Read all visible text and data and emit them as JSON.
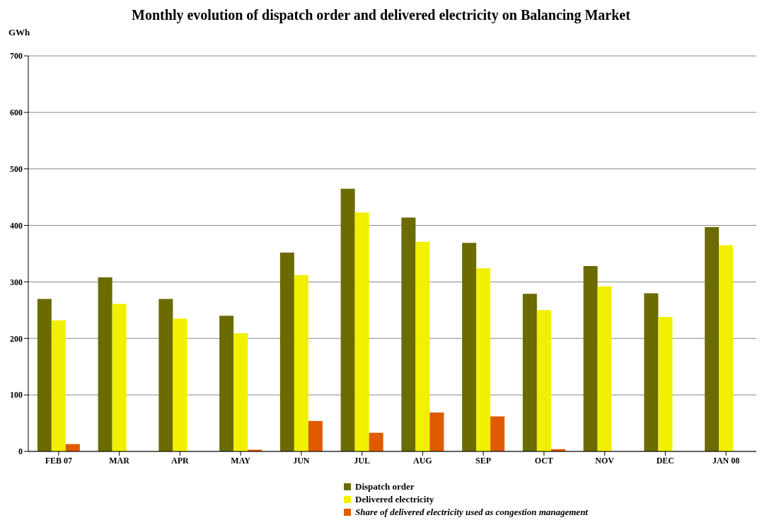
{
  "chart_data": {
    "type": "bar",
    "title": "Monthly evolution of dispatch order and delivered electricity on Balancing Market",
    "ylabel": "GWh",
    "categories": [
      "FEB 07",
      "MAR",
      "APR",
      "MAY",
      "JUN",
      "JUL",
      "AUG",
      "SEP",
      "OCT",
      "NOV",
      "DEC",
      "JAN 08"
    ],
    "series": [
      {
        "name": "Dispatch order",
        "color": "#6b6b00",
        "values": [
          270,
          308,
          270,
          240,
          352,
          465,
          414,
          369,
          279,
          328,
          280,
          397
        ]
      },
      {
        "name": "Delivered electricity",
        "color": "#f0f000",
        "values": [
          232,
          261,
          235,
          209,
          312,
          423,
          371,
          324,
          250,
          292,
          238,
          365
        ]
      },
      {
        "name": "Share of delivered electricity used as congestion management",
        "color": "#e05a00",
        "values": [
          13,
          0,
          0,
          3,
          54,
          33,
          69,
          62,
          4,
          0,
          0,
          0
        ]
      }
    ],
    "ylim": [
      0,
      700
    ],
    "yticks": [
      0,
      100,
      200,
      300,
      400,
      500,
      600,
      700
    ],
    "grid": "y",
    "legend": "bottom"
  }
}
